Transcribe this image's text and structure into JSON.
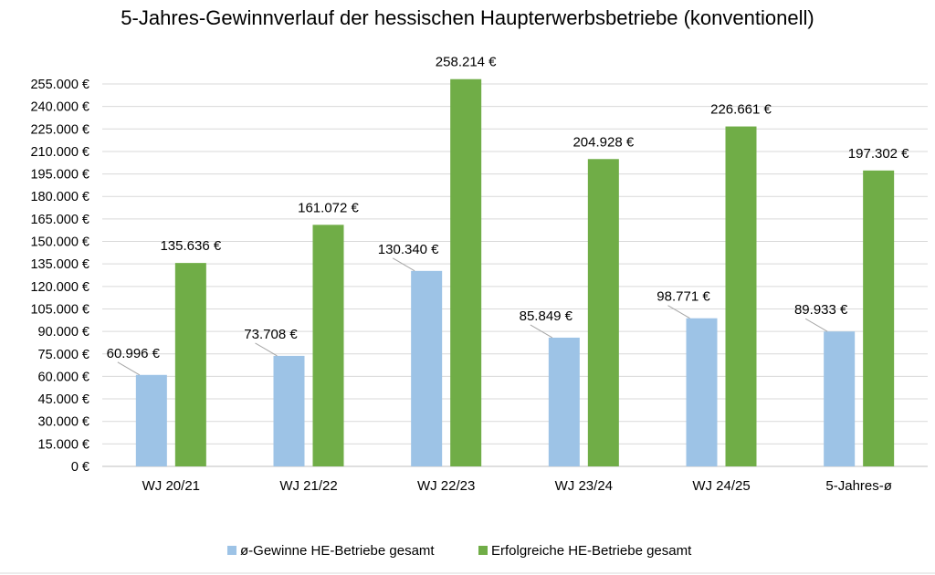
{
  "chart_data": {
    "type": "bar",
    "title": "5-Jahres-Gewinnverlauf der hessischen Haupterwerbsbetriebe (konventionell)",
    "categories": [
      "WJ 20/21",
      "WJ 21/22",
      "WJ 22/23",
      "WJ 23/24",
      "WJ 24/25",
      "5-Jahres-ø"
    ],
    "series": [
      {
        "name": "ø-Gewinne HE-Betriebe gesamt",
        "color": "#9DC3E6",
        "values": [
          60996,
          73708,
          130340,
          85849,
          98771,
          89933
        ],
        "labels": [
          "60.996 €",
          "73.708 €",
          "130.340 €",
          "85.849 €",
          "98.771 €",
          "89.933 €"
        ]
      },
      {
        "name": "Erfolgreiche HE-Betriebe gesamt",
        "color": "#70AD47",
        "values": [
          135636,
          161072,
          258214,
          204928,
          226661,
          197302
        ],
        "labels": [
          "135.636 €",
          "161.072 €",
          "258.214 €",
          "204.928 €",
          "226.661 €",
          "197.302 €"
        ]
      }
    ],
    "ylim": [
      0,
      255000
    ],
    "ytick_labels": [
      "0 €",
      "15.000 €",
      "30.000 €",
      "45.000 €",
      "60.000 €",
      "75.000 €",
      "90.000 €",
      "105.000 €",
      "120.000 €",
      "135.000 €",
      "150.000 €",
      "165.000 €",
      "180.000 €",
      "195.000 €",
      "210.000 €",
      "225.000 €",
      "240.000 €",
      "255.000 €"
    ],
    "grid": true,
    "legend_position": "bottom",
    "gridline_color": "#D9D9D9"
  }
}
